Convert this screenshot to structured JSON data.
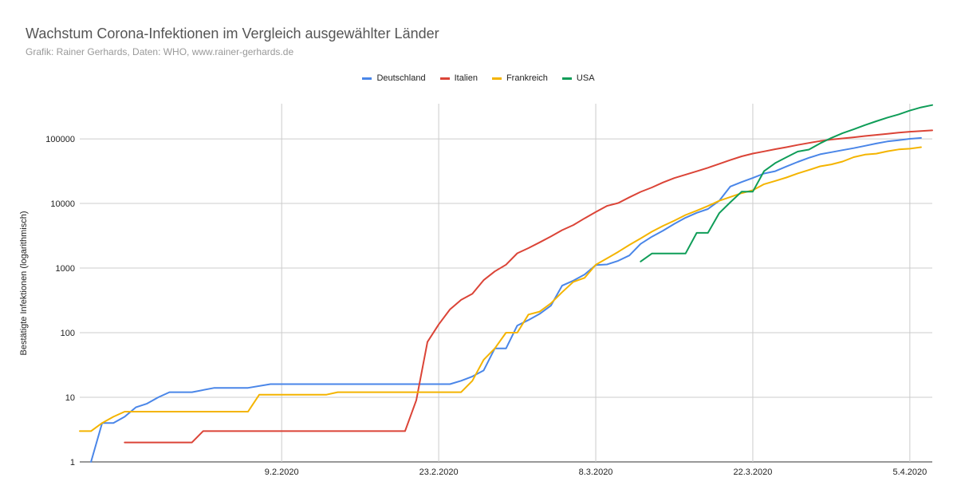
{
  "chart_data": {
    "type": "line",
    "title": "Wachstum Corona-Infektionen im Vergleich ausgewählter Länder",
    "subtitle": "Grafik: Rainer Gerhards, Daten: WHO, www.rainer-gerhards.de",
    "xlabel": "",
    "ylabel": "Bestätigte Infektionen (logarithmisch)",
    "y_scale": "log",
    "ylim": [
      1,
      350000
    ],
    "y_ticks": [
      "1",
      "10",
      "100",
      "1000",
      "10000",
      "100000"
    ],
    "x_tick_labels": [
      "9.2.2020",
      "23.2.2020",
      "8.3.2020",
      "22.3.2020",
      "5.4.2020"
    ],
    "xlim": [
      "2020-01-22",
      "2020-04-07"
    ],
    "grid": true,
    "legend_position": "top",
    "series": [
      {
        "name": "Deutschland",
        "color": "#4a86e8",
        "points": [
          [
            "2020-01-23",
            1
          ],
          [
            "2020-01-24",
            4
          ],
          [
            "2020-01-25",
            4
          ],
          [
            "2020-01-26",
            5
          ],
          [
            "2020-01-27",
            7
          ],
          [
            "2020-01-28",
            8
          ],
          [
            "2020-01-29",
            10
          ],
          [
            "2020-01-30",
            12
          ],
          [
            "2020-02-01",
            12
          ],
          [
            "2020-02-03",
            14
          ],
          [
            "2020-02-06",
            14
          ],
          [
            "2020-02-08",
            16
          ],
          [
            "2020-02-22",
            16
          ],
          [
            "2020-02-24",
            16
          ],
          [
            "2020-02-25",
            18
          ],
          [
            "2020-02-26",
            21
          ],
          [
            "2020-02-27",
            26
          ],
          [
            "2020-02-28",
            57
          ],
          [
            "2020-02-29",
            57
          ],
          [
            "2020-03-01",
            129
          ],
          [
            "2020-03-02",
            157
          ],
          [
            "2020-03-03",
            196
          ],
          [
            "2020-03-04",
            262
          ],
          [
            "2020-03-05",
            534
          ],
          [
            "2020-03-06",
            639
          ],
          [
            "2020-03-07",
            795
          ],
          [
            "2020-03-08",
            1112
          ],
          [
            "2020-03-09",
            1139
          ],
          [
            "2020-03-10",
            1296
          ],
          [
            "2020-03-11",
            1567
          ],
          [
            "2020-03-12",
            2369
          ],
          [
            "2020-03-13",
            3062
          ],
          [
            "2020-03-14",
            3795
          ],
          [
            "2020-03-15",
            4838
          ],
          [
            "2020-03-16",
            6012
          ],
          [
            "2020-03-17",
            7156
          ],
          [
            "2020-03-18",
            8198
          ],
          [
            "2020-03-19",
            10999
          ],
          [
            "2020-03-20",
            18323
          ],
          [
            "2020-03-21",
            21463
          ],
          [
            "2020-03-22",
            24774
          ],
          [
            "2020-03-23",
            29056
          ],
          [
            "2020-03-24",
            31554
          ],
          [
            "2020-03-25",
            37323
          ],
          [
            "2020-03-26",
            43938
          ],
          [
            "2020-03-27",
            50871
          ],
          [
            "2020-03-28",
            57695
          ],
          [
            "2020-03-29",
            62095
          ],
          [
            "2020-03-30",
            66885
          ],
          [
            "2020-03-31",
            71808
          ],
          [
            "2020-04-01",
            77981
          ],
          [
            "2020-04-02",
            84794
          ],
          [
            "2020-04-03",
            91159
          ],
          [
            "2020-04-04",
            95391
          ],
          [
            "2020-04-05",
            100123
          ],
          [
            "2020-04-06",
            103374
          ]
        ]
      },
      {
        "name": "Italien",
        "color": "#db4437",
        "points": [
          [
            "2020-01-26",
            2
          ],
          [
            "2020-02-01",
            2
          ],
          [
            "2020-02-02",
            3
          ],
          [
            "2020-02-20",
            3
          ],
          [
            "2020-02-21",
            9
          ],
          [
            "2020-02-22",
            72
          ],
          [
            "2020-02-23",
            134
          ],
          [
            "2020-02-24",
            229
          ],
          [
            "2020-02-25",
            322
          ],
          [
            "2020-02-26",
            400
          ],
          [
            "2020-02-27",
            650
          ],
          [
            "2020-02-28",
            888
          ],
          [
            "2020-02-29",
            1128
          ],
          [
            "2020-03-01",
            1694
          ],
          [
            "2020-03-02",
            2036
          ],
          [
            "2020-03-03",
            2502
          ],
          [
            "2020-03-04",
            3089
          ],
          [
            "2020-03-05",
            3858
          ],
          [
            "2020-03-06",
            4636
          ],
          [
            "2020-03-07",
            5883
          ],
          [
            "2020-03-08",
            7375
          ],
          [
            "2020-03-09",
            9172
          ],
          [
            "2020-03-10",
            10149
          ],
          [
            "2020-03-11",
            12462
          ],
          [
            "2020-03-12",
            15113
          ],
          [
            "2020-03-13",
            17660
          ],
          [
            "2020-03-14",
            21157
          ],
          [
            "2020-03-15",
            24747
          ],
          [
            "2020-03-16",
            27980
          ],
          [
            "2020-03-17",
            31506
          ],
          [
            "2020-03-18",
            35713
          ],
          [
            "2020-03-19",
            41035
          ],
          [
            "2020-03-20",
            47021
          ],
          [
            "2020-03-21",
            53578
          ],
          [
            "2020-03-22",
            59138
          ],
          [
            "2020-03-23",
            63927
          ],
          [
            "2020-03-24",
            69176
          ],
          [
            "2020-03-25",
            74386
          ],
          [
            "2020-03-26",
            80539
          ],
          [
            "2020-03-27",
            86498
          ],
          [
            "2020-03-28",
            92472
          ],
          [
            "2020-03-29",
            97689
          ],
          [
            "2020-03-30",
            101739
          ],
          [
            "2020-03-31",
            105792
          ],
          [
            "2020-04-01",
            110574
          ],
          [
            "2020-04-02",
            115242
          ],
          [
            "2020-04-03",
            119827
          ],
          [
            "2020-04-04",
            124632
          ],
          [
            "2020-04-05",
            128948
          ],
          [
            "2020-04-06",
            132547
          ],
          [
            "2020-04-07",
            135586
          ]
        ]
      },
      {
        "name": "Frankreich",
        "color": "#f4b400",
        "points": [
          [
            "2020-01-22",
            3
          ],
          [
            "2020-01-23",
            3
          ],
          [
            "2020-01-24",
            4
          ],
          [
            "2020-01-25",
            5
          ],
          [
            "2020-01-26",
            6
          ],
          [
            "2020-01-27",
            6
          ],
          [
            "2020-02-06",
            6
          ],
          [
            "2020-02-07",
            11
          ],
          [
            "2020-02-13",
            11
          ],
          [
            "2020-02-14",
            12
          ],
          [
            "2020-02-25",
            12
          ],
          [
            "2020-02-26",
            18
          ],
          [
            "2020-02-27",
            38
          ],
          [
            "2020-02-28",
            57
          ],
          [
            "2020-02-29",
            100
          ],
          [
            "2020-03-01",
            100
          ],
          [
            "2020-03-02",
            191
          ],
          [
            "2020-03-03",
            212
          ],
          [
            "2020-03-04",
            285
          ],
          [
            "2020-03-05",
            423
          ],
          [
            "2020-03-06",
            613
          ],
          [
            "2020-03-07",
            706
          ],
          [
            "2020-03-08",
            1126
          ],
          [
            "2020-03-09",
            1412
          ],
          [
            "2020-03-10",
            1784
          ],
          [
            "2020-03-11",
            2281
          ],
          [
            "2020-03-12",
            2876
          ],
          [
            "2020-03-13",
            3661
          ],
          [
            "2020-03-14",
            4499
          ],
          [
            "2020-03-15",
            5423
          ],
          [
            "2020-03-16",
            6633
          ],
          [
            "2020-03-17",
            7730
          ],
          [
            "2020-03-18",
            9134
          ],
          [
            "2020-03-19",
            10995
          ],
          [
            "2020-03-20",
            12612
          ],
          [
            "2020-03-21",
            14459
          ],
          [
            "2020-03-22",
            16018
          ],
          [
            "2020-03-23",
            19856
          ],
          [
            "2020-03-24",
            22304
          ],
          [
            "2020-03-25",
            25233
          ],
          [
            "2020-03-26",
            29155
          ],
          [
            "2020-03-27",
            32964
          ],
          [
            "2020-03-28",
            37575
          ],
          [
            "2020-03-29",
            40174
          ],
          [
            "2020-03-30",
            44550
          ],
          [
            "2020-03-31",
            52128
          ],
          [
            "2020-04-01",
            56989
          ],
          [
            "2020-04-02",
            59105
          ],
          [
            "2020-04-03",
            64338
          ],
          [
            "2020-04-04",
            68605
          ],
          [
            "2020-04-05",
            70478
          ],
          [
            "2020-04-06",
            74390
          ]
        ]
      },
      {
        "name": "USA",
        "color": "#0f9d58",
        "points": [
          [
            "2020-03-12",
            1264
          ],
          [
            "2020-03-13",
            1678
          ],
          [
            "2020-03-14",
            1678
          ],
          [
            "2020-03-15",
            1678
          ],
          [
            "2020-03-16",
            1678
          ],
          [
            "2020-03-17",
            3503
          ],
          [
            "2020-03-18",
            3503
          ],
          [
            "2020-03-19",
            7087
          ],
          [
            "2020-03-20",
            10442
          ],
          [
            "2020-03-21",
            15219
          ],
          [
            "2020-03-22",
            15219
          ],
          [
            "2020-03-23",
            31573
          ],
          [
            "2020-03-24",
            42164
          ],
          [
            "2020-03-25",
            51914
          ],
          [
            "2020-03-26",
            63570
          ],
          [
            "2020-03-27",
            68334
          ],
          [
            "2020-03-28",
            85228
          ],
          [
            "2020-03-29",
            103321
          ],
          [
            "2020-03-30",
            122653
          ],
          [
            "2020-03-31",
            140640
          ],
          [
            "2020-04-01",
            163199
          ],
          [
            "2020-04-02",
            187302
          ],
          [
            "2020-04-03",
            213144
          ],
          [
            "2020-04-04",
            239279
          ],
          [
            "2020-04-05",
            273880
          ],
          [
            "2020-04-06",
            307318
          ],
          [
            "2020-04-07",
            333811
          ]
        ]
      }
    ]
  }
}
